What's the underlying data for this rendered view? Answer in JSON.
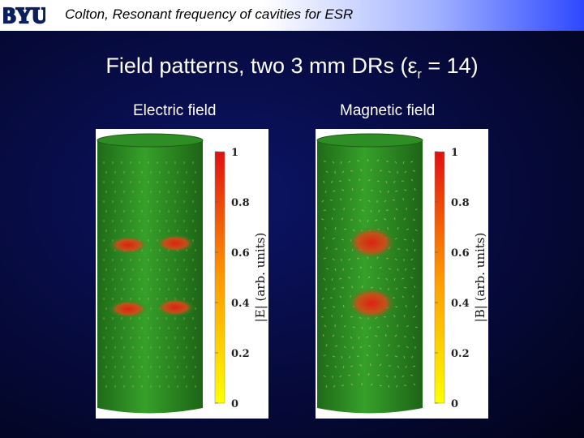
{
  "header": {
    "logo_text": "BYU",
    "text": "Colton, Resonant frequency of cavities for ESR"
  },
  "slide": {
    "title_main": "Field patterns, two 3 mm DRs (",
    "title_symbol": "ε",
    "title_sub": "r",
    "title_end": " = 14)"
  },
  "panels": [
    {
      "label": "Electric field",
      "axis_label": "|E| (arb. units)",
      "field": "electric"
    },
    {
      "label": "Magnetic field",
      "axis_label": "|B| (arb. units)",
      "field": "magnetic"
    }
  ],
  "colorbar": {
    "ticks": [
      "1",
      "0.8",
      "0.6",
      "0.4",
      "0.2",
      "0"
    ],
    "colors": {
      "high": "#e01010",
      "mid": "#ff9900",
      "low": "#ffff00"
    }
  },
  "colors": {
    "cylinder": "#2d8a22",
    "hotspot": "#d83018"
  }
}
